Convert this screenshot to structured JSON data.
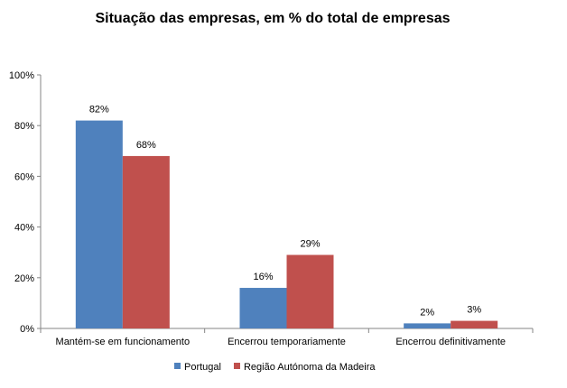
{
  "chart_data": {
    "type": "bar",
    "title": "Situação das empresas, em % do total de empresas",
    "xlabel": "",
    "ylabel": "",
    "categories": [
      "Mantém-se em funcionamento",
      "Encerrou temporariamente",
      "Encerrou definitivamente"
    ],
    "series": [
      {
        "name": "Portugal",
        "values": [
          82,
          16,
          2
        ],
        "labels": [
          "82%",
          "16%",
          "2%"
        ],
        "color": "#4F81BD"
      },
      {
        "name": "Região Autónoma da Madeira",
        "values": [
          68,
          29,
          3
        ],
        "labels": [
          "68%",
          "29%",
          "3%"
        ],
        "color": "#C0504D"
      }
    ],
    "ylim": [
      0,
      100
    ],
    "yticks": [
      0,
      20,
      40,
      60,
      80,
      100
    ],
    "ytick_labels": [
      "0%",
      "20%",
      "40%",
      "60%",
      "80%",
      "100%"
    ],
    "grid": false,
    "legend_position": "bottom"
  }
}
